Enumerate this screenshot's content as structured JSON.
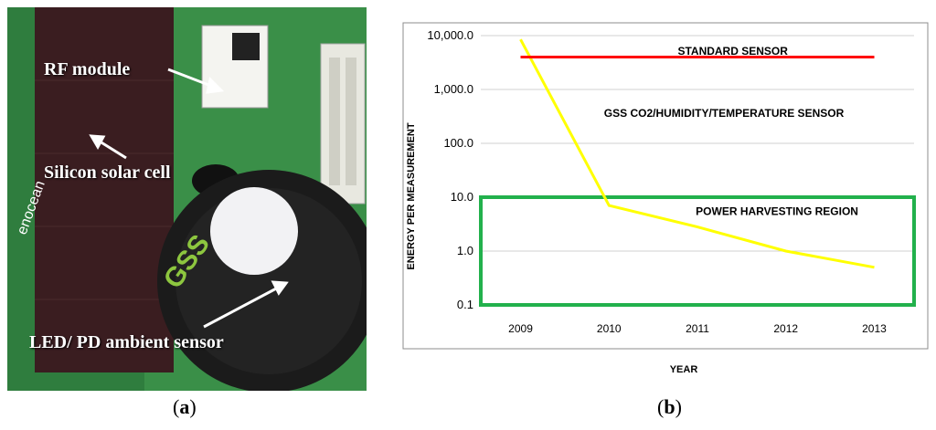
{
  "photo": {
    "labels": {
      "rf_module": "RF module",
      "silicon_solar_cell": "Silicon solar cell",
      "led_pd_sensor": "LED/ PD ambient sensor"
    },
    "printed_text": {
      "enocean": "enocean",
      "gss": "GSS"
    }
  },
  "captions": {
    "a": {
      "open": "(",
      "letter": "a",
      "close": ")"
    },
    "b": {
      "open": "(",
      "letter": "b",
      "close": ")"
    }
  },
  "chart_data": {
    "type": "line",
    "xlabel": "YEAR",
    "ylabel": "ENERGY PER MEASUREMENT",
    "yscale": "log",
    "ylim": [
      0.1,
      10000
    ],
    "yticks": [
      0.1,
      1.0,
      10.0,
      100.0,
      1000.0,
      10000.0
    ],
    "ytick_labels": [
      "0.1",
      "1.0",
      "10.0",
      "100.0",
      "1,000.0",
      "10,000.0"
    ],
    "x": [
      2009,
      2010,
      2011,
      2012,
      2013
    ],
    "xtick_labels": [
      "2009",
      "2010",
      "2011",
      "2012",
      "2013"
    ],
    "grid": "horizontal",
    "series": [
      {
        "name": "GSS CO2/HUMIDITY/TEMPERATURE SENSOR",
        "color": "#ffff00",
        "x": [
          2009,
          2010,
          2011,
          2012,
          2013
        ],
        "values": [
          8500,
          7,
          2.8,
          1.0,
          0.5
        ]
      },
      {
        "name": "STANDARD SENSOR",
        "color": "#ff0000",
        "x": [
          2009,
          2013
        ],
        "values": [
          4000,
          4000
        ]
      }
    ],
    "region": {
      "name": "POWER HARVESTING REGION",
      "color": "#22b14c",
      "ymin": 0.1,
      "ymax": 10
    },
    "annotations": [
      {
        "text": "STANDARD SENSOR",
        "x": 2011.4,
        "y": 5200
      },
      {
        "text": "GSS CO2/HUMIDITY/TEMPERATURE SENSOR",
        "x": 2011.3,
        "y": 360
      },
      {
        "text": "POWER HARVESTING REGION",
        "x": 2011.9,
        "y": 5.5
      }
    ]
  }
}
